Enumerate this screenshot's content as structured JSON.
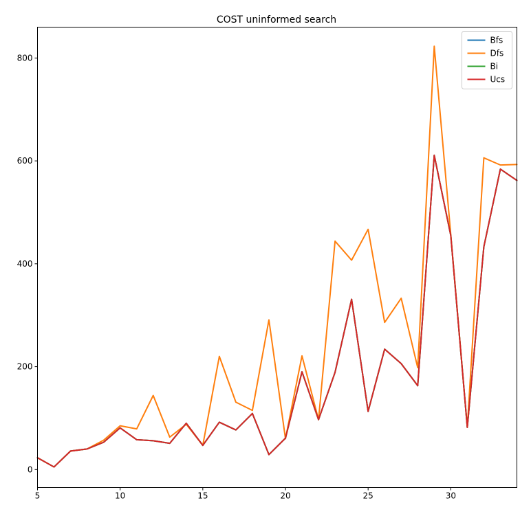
{
  "chart_data": {
    "type": "line",
    "title": "COST uninformed search",
    "xlabel": "",
    "ylabel": "",
    "xlim": [
      5,
      34
    ],
    "ylim": [
      -35,
      860
    ],
    "xticks": [
      5,
      10,
      15,
      20,
      25,
      30
    ],
    "yticks": [
      0,
      200,
      400,
      600,
      800
    ],
    "grid": false,
    "legend_position": "top-right",
    "x": [
      5,
      6,
      7,
      8,
      9,
      10,
      11,
      12,
      13,
      14,
      15,
      16,
      17,
      18,
      19,
      20,
      21,
      22,
      23,
      24,
      25,
      26,
      27,
      28,
      29,
      30,
      31,
      32,
      33,
      34
    ],
    "series": [
      {
        "name": "Bfs",
        "color": "#1f77b4",
        "values": [
          23,
          5,
          36,
          40,
          53,
          81,
          58,
          56,
          51,
          90,
          47,
          92,
          77,
          109,
          29,
          61,
          190,
          97,
          189,
          331,
          113,
          234,
          206,
          163,
          611,
          455,
          82,
          433,
          584,
          562
        ]
      },
      {
        "name": "Dfs",
        "color": "#ff7f0e",
        "values": [
          23,
          5,
          36,
          40,
          57,
          85,
          79,
          144,
          63,
          88,
          47,
          220,
          131,
          115,
          291,
          60,
          221,
          97,
          444,
          407,
          467,
          286,
          333,
          198,
          823,
          457,
          82,
          606,
          592,
          593
        ]
      },
      {
        "name": "Bi",
        "color": "#2ca02c",
        "values": [
          23,
          5,
          36,
          40,
          53,
          81,
          58,
          56,
          51,
          90,
          47,
          92,
          77,
          109,
          29,
          61,
          190,
          97,
          189,
          331,
          113,
          234,
          206,
          163,
          611,
          455,
          82,
          433,
          584,
          562
        ]
      },
      {
        "name": "Ucs",
        "color": "#d62728",
        "values": [
          23,
          5,
          36,
          40,
          53,
          81,
          58,
          56,
          51,
          90,
          47,
          92,
          77,
          109,
          29,
          61,
          190,
          97,
          189,
          331,
          113,
          234,
          206,
          163,
          611,
          455,
          82,
          433,
          584,
          562
        ]
      }
    ]
  }
}
